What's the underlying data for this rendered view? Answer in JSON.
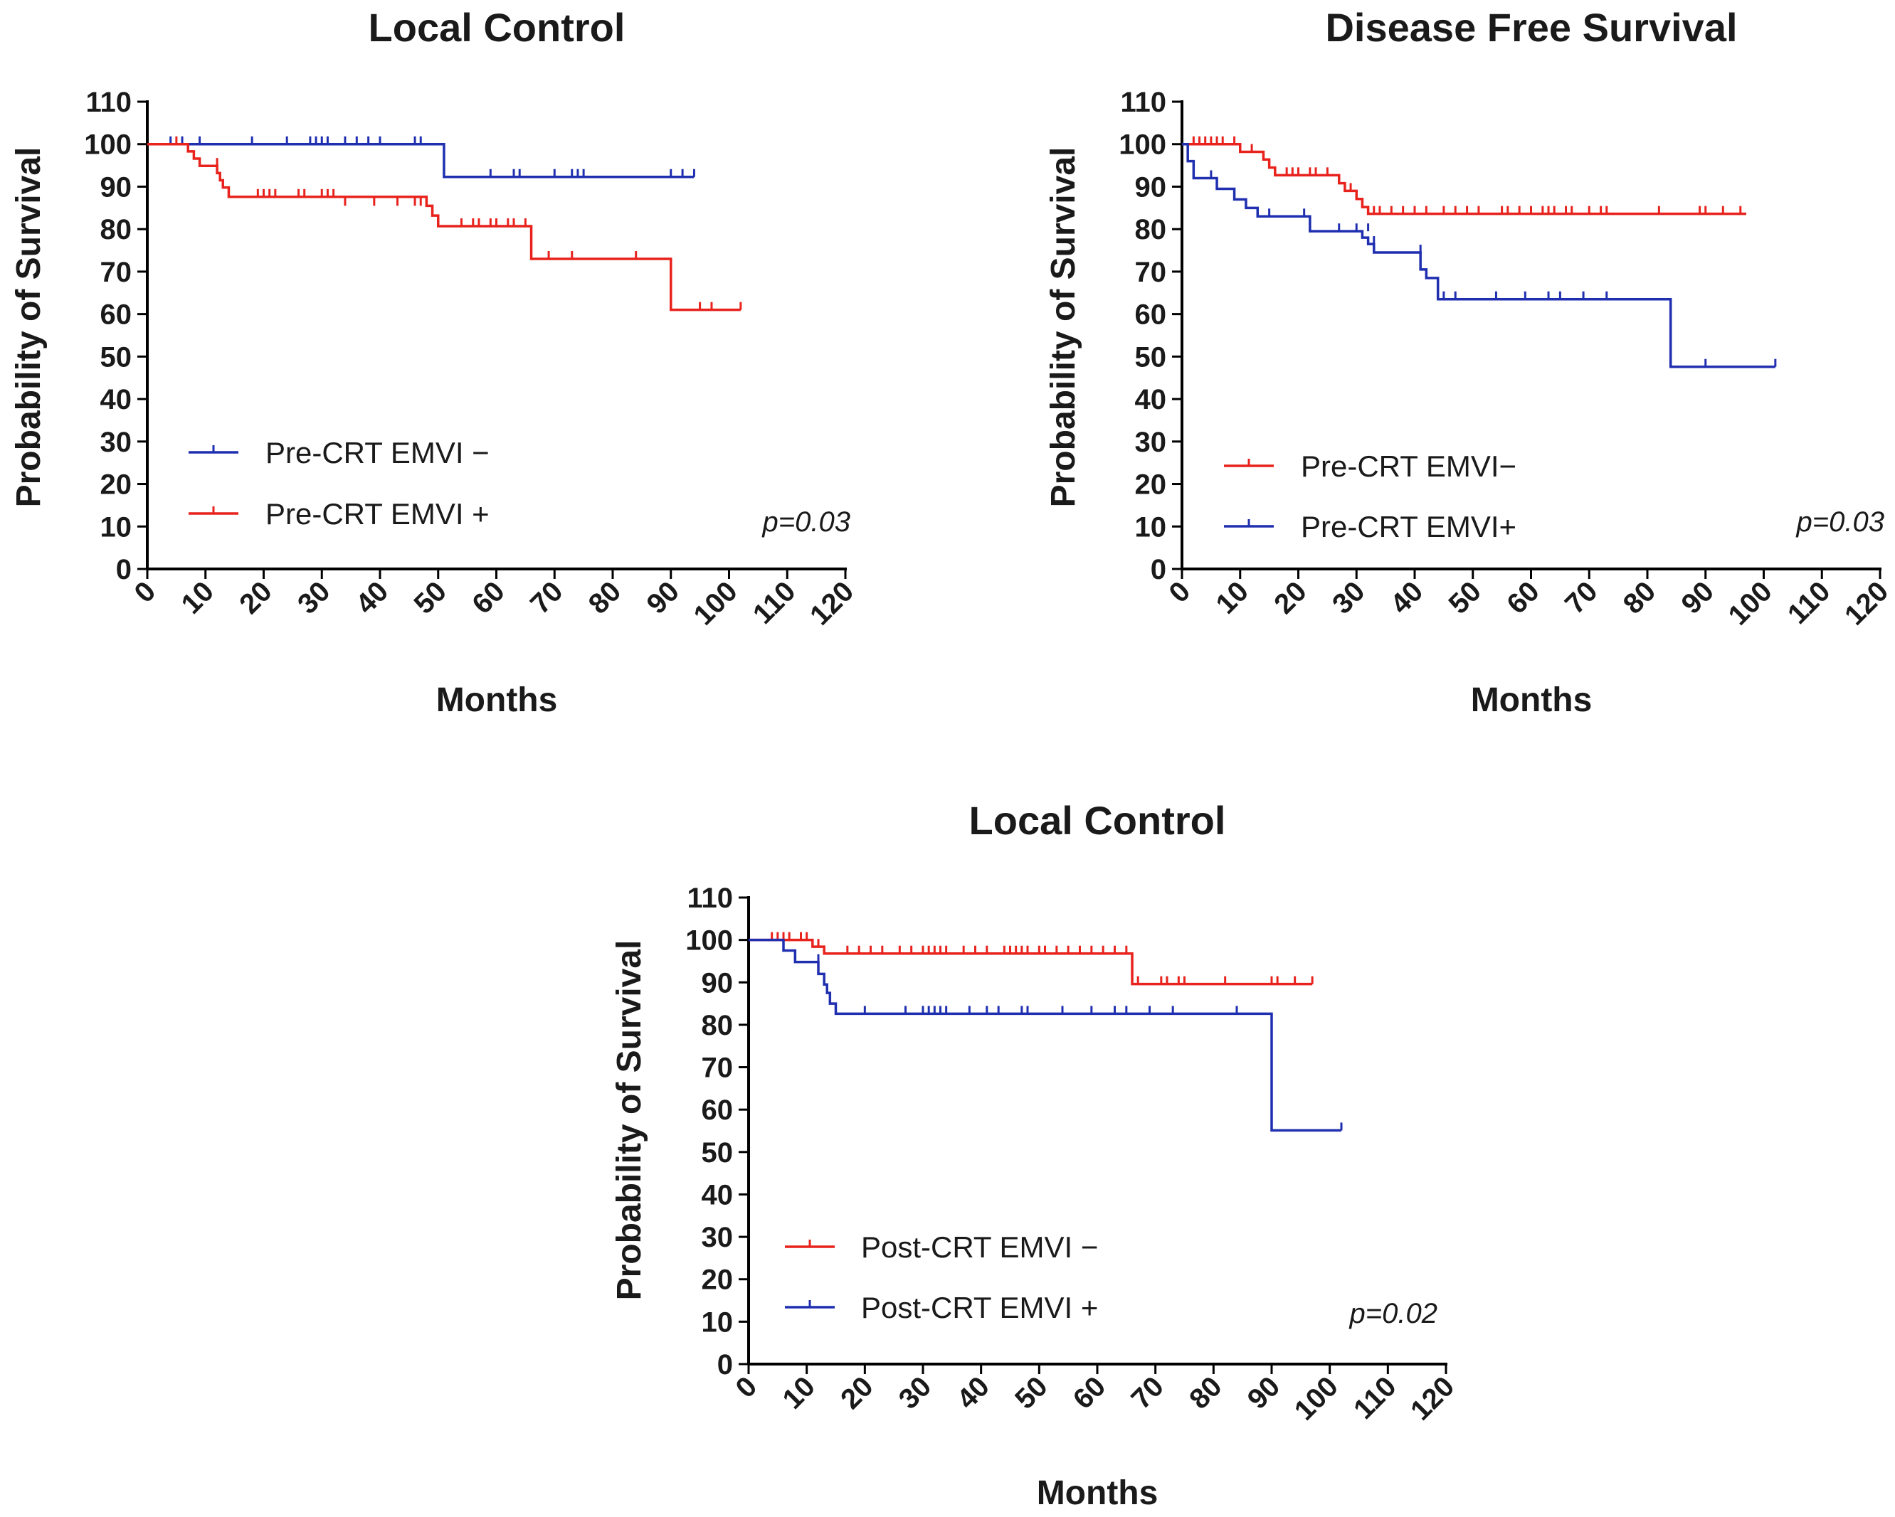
{
  "chart_data": [
    {
      "type": "line",
      "title": "Local Control",
      "xlabel": "Months",
      "ylabel": "Probability of Survival",
      "xlim": [
        0,
        120
      ],
      "ylim": [
        0,
        110
      ],
      "xticks": [
        0,
        10,
        20,
        30,
        40,
        50,
        60,
        70,
        80,
        90,
        100,
        110,
        120
      ],
      "yticks": [
        0,
        10,
        20,
        30,
        40,
        50,
        60,
        70,
        80,
        90,
        100,
        110
      ],
      "legend_position": "bottom-left",
      "annotation": "p=0.03",
      "series": [
        {
          "name": "Pre-CRT EMVI −",
          "color": "#1f2fb0",
          "steps": [
            [
              0,
              100
            ],
            [
              51,
              92.3
            ],
            [
              94,
              92.3
            ]
          ],
          "censored": [
            [
              4,
              100
            ],
            [
              6,
              100
            ],
            [
              9,
              100
            ],
            [
              18,
              100
            ],
            [
              24,
              100
            ],
            [
              28,
              100
            ],
            [
              29,
              100
            ],
            [
              30,
              100
            ],
            [
              31,
              100
            ],
            [
              34,
              100
            ],
            [
              36,
              100
            ],
            [
              38,
              100
            ],
            [
              40,
              100
            ],
            [
              46,
              100
            ],
            [
              47,
              100
            ],
            [
              59,
              92.3
            ],
            [
              63,
              92.3
            ],
            [
              64,
              92.3
            ],
            [
              70,
              92.3
            ],
            [
              73,
              92.3
            ],
            [
              74,
              92.3
            ],
            [
              75,
              92.3
            ],
            [
              90,
              92.3
            ],
            [
              92,
              92.3
            ],
            [
              94,
              92.3
            ]
          ]
        },
        {
          "name": "Pre-CRT EMVI +",
          "color": "#e8221c",
          "steps": [
            [
              0,
              100
            ],
            [
              6,
              100
            ],
            [
              7,
              98.3
            ],
            [
              8,
              96.6
            ],
            [
              9,
              94.9
            ],
            [
              12,
              93.2
            ],
            [
              12.5,
              91.5
            ],
            [
              13,
              89.8
            ],
            [
              14,
              87.6
            ],
            [
              48,
              85.5
            ],
            [
              49,
              83.2
            ],
            [
              50,
              80.7
            ],
            [
              66,
              73.0
            ],
            [
              90,
              61.0
            ],
            [
              102,
              61.0
            ]
          ],
          "censored": [
            [
              5,
              100
            ],
            [
              12,
              94.9
            ],
            [
              19,
              87.6
            ],
            [
              20,
              87.6
            ],
            [
              21,
              87.6
            ],
            [
              22,
              87.6
            ],
            [
              26,
              87.6
            ],
            [
              27,
              87.6
            ],
            [
              30,
              87.6
            ],
            [
              31,
              87.6
            ],
            [
              32,
              87.6
            ],
            [
              34,
              85.5
            ],
            [
              39,
              85.5
            ],
            [
              43,
              85.5
            ],
            [
              46,
              85.5
            ],
            [
              47,
              85.5
            ],
            [
              48,
              85.5
            ],
            [
              54,
              80.7
            ],
            [
              56,
              80.7
            ],
            [
              57,
              80.7
            ],
            [
              59,
              80.7
            ],
            [
              60,
              80.7
            ],
            [
              62,
              80.7
            ],
            [
              63,
              80.7
            ],
            [
              65,
              80.7
            ],
            [
              69,
              73.0
            ],
            [
              73,
              73.0
            ],
            [
              84,
              73.0
            ],
            [
              95,
              61.0
            ],
            [
              97,
              61.0
            ],
            [
              102,
              61.0
            ]
          ]
        }
      ]
    },
    {
      "type": "line",
      "title": "Disease Free Survival",
      "xlabel": "Months",
      "ylabel": "Probability of Survival",
      "xlim": [
        0,
        120
      ],
      "ylim": [
        0,
        110
      ],
      "xticks": [
        0,
        10,
        20,
        30,
        40,
        50,
        60,
        70,
        80,
        90,
        100,
        110,
        120
      ],
      "yticks": [
        0,
        10,
        20,
        30,
        40,
        50,
        60,
        70,
        80,
        90,
        100,
        110
      ],
      "legend_position": "bottom-left",
      "annotation": "p=0.03",
      "series": [
        {
          "name": "Pre-CRT EMVI−",
          "color": "#e8221c",
          "steps": [
            [
              0,
              100
            ],
            [
              10,
              98.2
            ],
            [
              14,
              96.4
            ],
            [
              15,
              94.5
            ],
            [
              16,
              92.7
            ],
            [
              27,
              90.8
            ],
            [
              28,
              89.0
            ],
            [
              30,
              87.1
            ],
            [
              31,
              85.2
            ],
            [
              32,
              83.6
            ],
            [
              97,
              83.6
            ]
          ],
          "censored": [
            [
              2,
              100
            ],
            [
              3,
              100
            ],
            [
              4,
              100
            ],
            [
              5,
              100
            ],
            [
              6,
              100
            ],
            [
              7,
              100
            ],
            [
              9,
              100
            ],
            [
              12,
              98.2
            ],
            [
              18,
              92.7
            ],
            [
              19,
              92.7
            ],
            [
              20,
              92.7
            ],
            [
              22,
              92.7
            ],
            [
              23,
              92.7
            ],
            [
              25,
              92.7
            ],
            [
              29,
              89.0
            ],
            [
              31,
              85.2
            ],
            [
              32,
              83.6
            ],
            [
              33,
              83.6
            ],
            [
              34,
              83.6
            ],
            [
              36,
              83.6
            ],
            [
              38,
              83.6
            ],
            [
              40,
              83.6
            ],
            [
              42,
              83.6
            ],
            [
              45,
              83.6
            ],
            [
              47,
              83.6
            ],
            [
              49,
              83.6
            ],
            [
              51,
              83.6
            ],
            [
              55,
              83.6
            ],
            [
              56,
              83.6
            ],
            [
              58,
              83.6
            ],
            [
              60,
              83.6
            ],
            [
              62,
              83.6
            ],
            [
              63,
              83.6
            ],
            [
              64,
              83.6
            ],
            [
              66,
              83.6
            ],
            [
              67,
              83.6
            ],
            [
              70,
              83.6
            ],
            [
              72,
              83.6
            ],
            [
              73,
              83.6
            ],
            [
              82,
              83.6
            ],
            [
              89,
              83.6
            ],
            [
              90,
              83.6
            ],
            [
              93,
              83.6
            ],
            [
              96,
              83.6
            ]
          ]
        },
        {
          "name": "Pre-CRT EMVI+",
          "color": "#1f2fb0",
          "steps": [
            [
              0,
              100
            ],
            [
              1,
              96.0
            ],
            [
              2,
              92.0
            ],
            [
              6,
              89.5
            ],
            [
              9,
              87.0
            ],
            [
              11,
              85.0
            ],
            [
              13,
              83.0
            ],
            [
              22,
              79.5
            ],
            [
              31,
              78.0
            ],
            [
              32,
              76.5
            ],
            [
              33,
              74.5
            ],
            [
              41,
              70.5
            ],
            [
              42,
              68.5
            ],
            [
              44,
              63.5
            ],
            [
              84,
              63.5
            ],
            [
              84,
              47.6
            ],
            [
              102,
              47.6
            ]
          ],
          "censored": [
            [
              5,
              92.0
            ],
            [
              15,
              83.0
            ],
            [
              21,
              83.0
            ],
            [
              27,
              79.5
            ],
            [
              30,
              79.5
            ],
            [
              32,
              79.5
            ],
            [
              33,
              76.5
            ],
            [
              41,
              74.5
            ],
            [
              45,
              63.5
            ],
            [
              47,
              63.5
            ],
            [
              54,
              63.5
            ],
            [
              59,
              63.5
            ],
            [
              63,
              63.5
            ],
            [
              65,
              63.5
            ],
            [
              69,
              63.5
            ],
            [
              73,
              63.5
            ],
            [
              84,
              47.6
            ],
            [
              90,
              47.6
            ],
            [
              102,
              47.6
            ]
          ]
        }
      ]
    },
    {
      "type": "line",
      "title": "Local Control",
      "xlabel": "Months",
      "ylabel": "Probability of Survival",
      "xlim": [
        0,
        120
      ],
      "ylim": [
        0,
        110
      ],
      "xticks": [
        0,
        10,
        20,
        30,
        40,
        50,
        60,
        70,
        80,
        90,
        100,
        110,
        120
      ],
      "yticks": [
        0,
        10,
        20,
        30,
        40,
        50,
        60,
        70,
        80,
        90,
        100,
        110
      ],
      "legend_position": "bottom-left",
      "annotation": "p=0.02",
      "series": [
        {
          "name": "Post-CRT EMVI −",
          "color": "#e8221c",
          "steps": [
            [
              0,
              100
            ],
            [
              11,
              98.4
            ],
            [
              13,
              96.8
            ],
            [
              66,
              89.6
            ],
            [
              97,
              89.6
            ]
          ],
          "censored": [
            [
              4,
              100
            ],
            [
              5,
              100
            ],
            [
              6,
              100
            ],
            [
              7,
              100
            ],
            [
              9,
              100
            ],
            [
              10,
              100
            ],
            [
              12,
              98.4
            ],
            [
              17,
              96.8
            ],
            [
              19,
              96.8
            ],
            [
              21,
              96.8
            ],
            [
              23,
              96.8
            ],
            [
              26,
              96.8
            ],
            [
              28,
              96.8
            ],
            [
              30,
              96.8
            ],
            [
              31,
              96.8
            ],
            [
              32,
              96.8
            ],
            [
              33,
              96.8
            ],
            [
              34,
              96.8
            ],
            [
              37,
              96.8
            ],
            [
              39,
              96.8
            ],
            [
              41,
              96.8
            ],
            [
              44,
              96.8
            ],
            [
              45,
              96.8
            ],
            [
              46,
              96.8
            ],
            [
              47,
              96.8
            ],
            [
              48,
              96.8
            ],
            [
              50,
              96.8
            ],
            [
              51,
              96.8
            ],
            [
              53,
              96.8
            ],
            [
              55,
              96.8
            ],
            [
              57,
              96.8
            ],
            [
              59,
              96.8
            ],
            [
              61,
              96.8
            ],
            [
              63,
              96.8
            ],
            [
              65,
              96.8
            ],
            [
              67,
              89.6
            ],
            [
              71,
              89.6
            ],
            [
              72,
              89.6
            ],
            [
              74,
              89.6
            ],
            [
              75,
              89.6
            ],
            [
              82,
              89.6
            ],
            [
              90,
              89.6
            ],
            [
              91,
              89.6
            ],
            [
              94,
              89.6
            ],
            [
              97,
              89.6
            ]
          ]
        },
        {
          "name": "Post-CRT EMVI +",
          "color": "#1f2fb0",
          "steps": [
            [
              0,
              100
            ],
            [
              6,
              97.5
            ],
            [
              8,
              94.8
            ],
            [
              12,
              92.0
            ],
            [
              13,
              89.5
            ],
            [
              13.5,
              87.5
            ],
            [
              14,
              85.0
            ],
            [
              15,
              82.6
            ],
            [
              90,
              82.6
            ],
            [
              90,
              55.1
            ],
            [
              102,
              55.1
            ]
          ],
          "censored": [
            [
              12,
              94.8
            ],
            [
              20,
              82.6
            ],
            [
              27,
              82.6
            ],
            [
              30,
              82.6
            ],
            [
              31,
              82.6
            ],
            [
              32,
              82.6
            ],
            [
              33,
              82.6
            ],
            [
              34,
              82.6
            ],
            [
              38,
              82.6
            ],
            [
              41,
              82.6
            ],
            [
              43,
              82.6
            ],
            [
              47,
              82.6
            ],
            [
              48,
              82.6
            ],
            [
              54,
              82.6
            ],
            [
              59,
              82.6
            ],
            [
              63,
              82.6
            ],
            [
              65,
              82.6
            ],
            [
              69,
              82.6
            ],
            [
              73,
              82.6
            ],
            [
              84,
              82.6
            ],
            [
              102,
              55.1
            ]
          ]
        }
      ]
    }
  ]
}
